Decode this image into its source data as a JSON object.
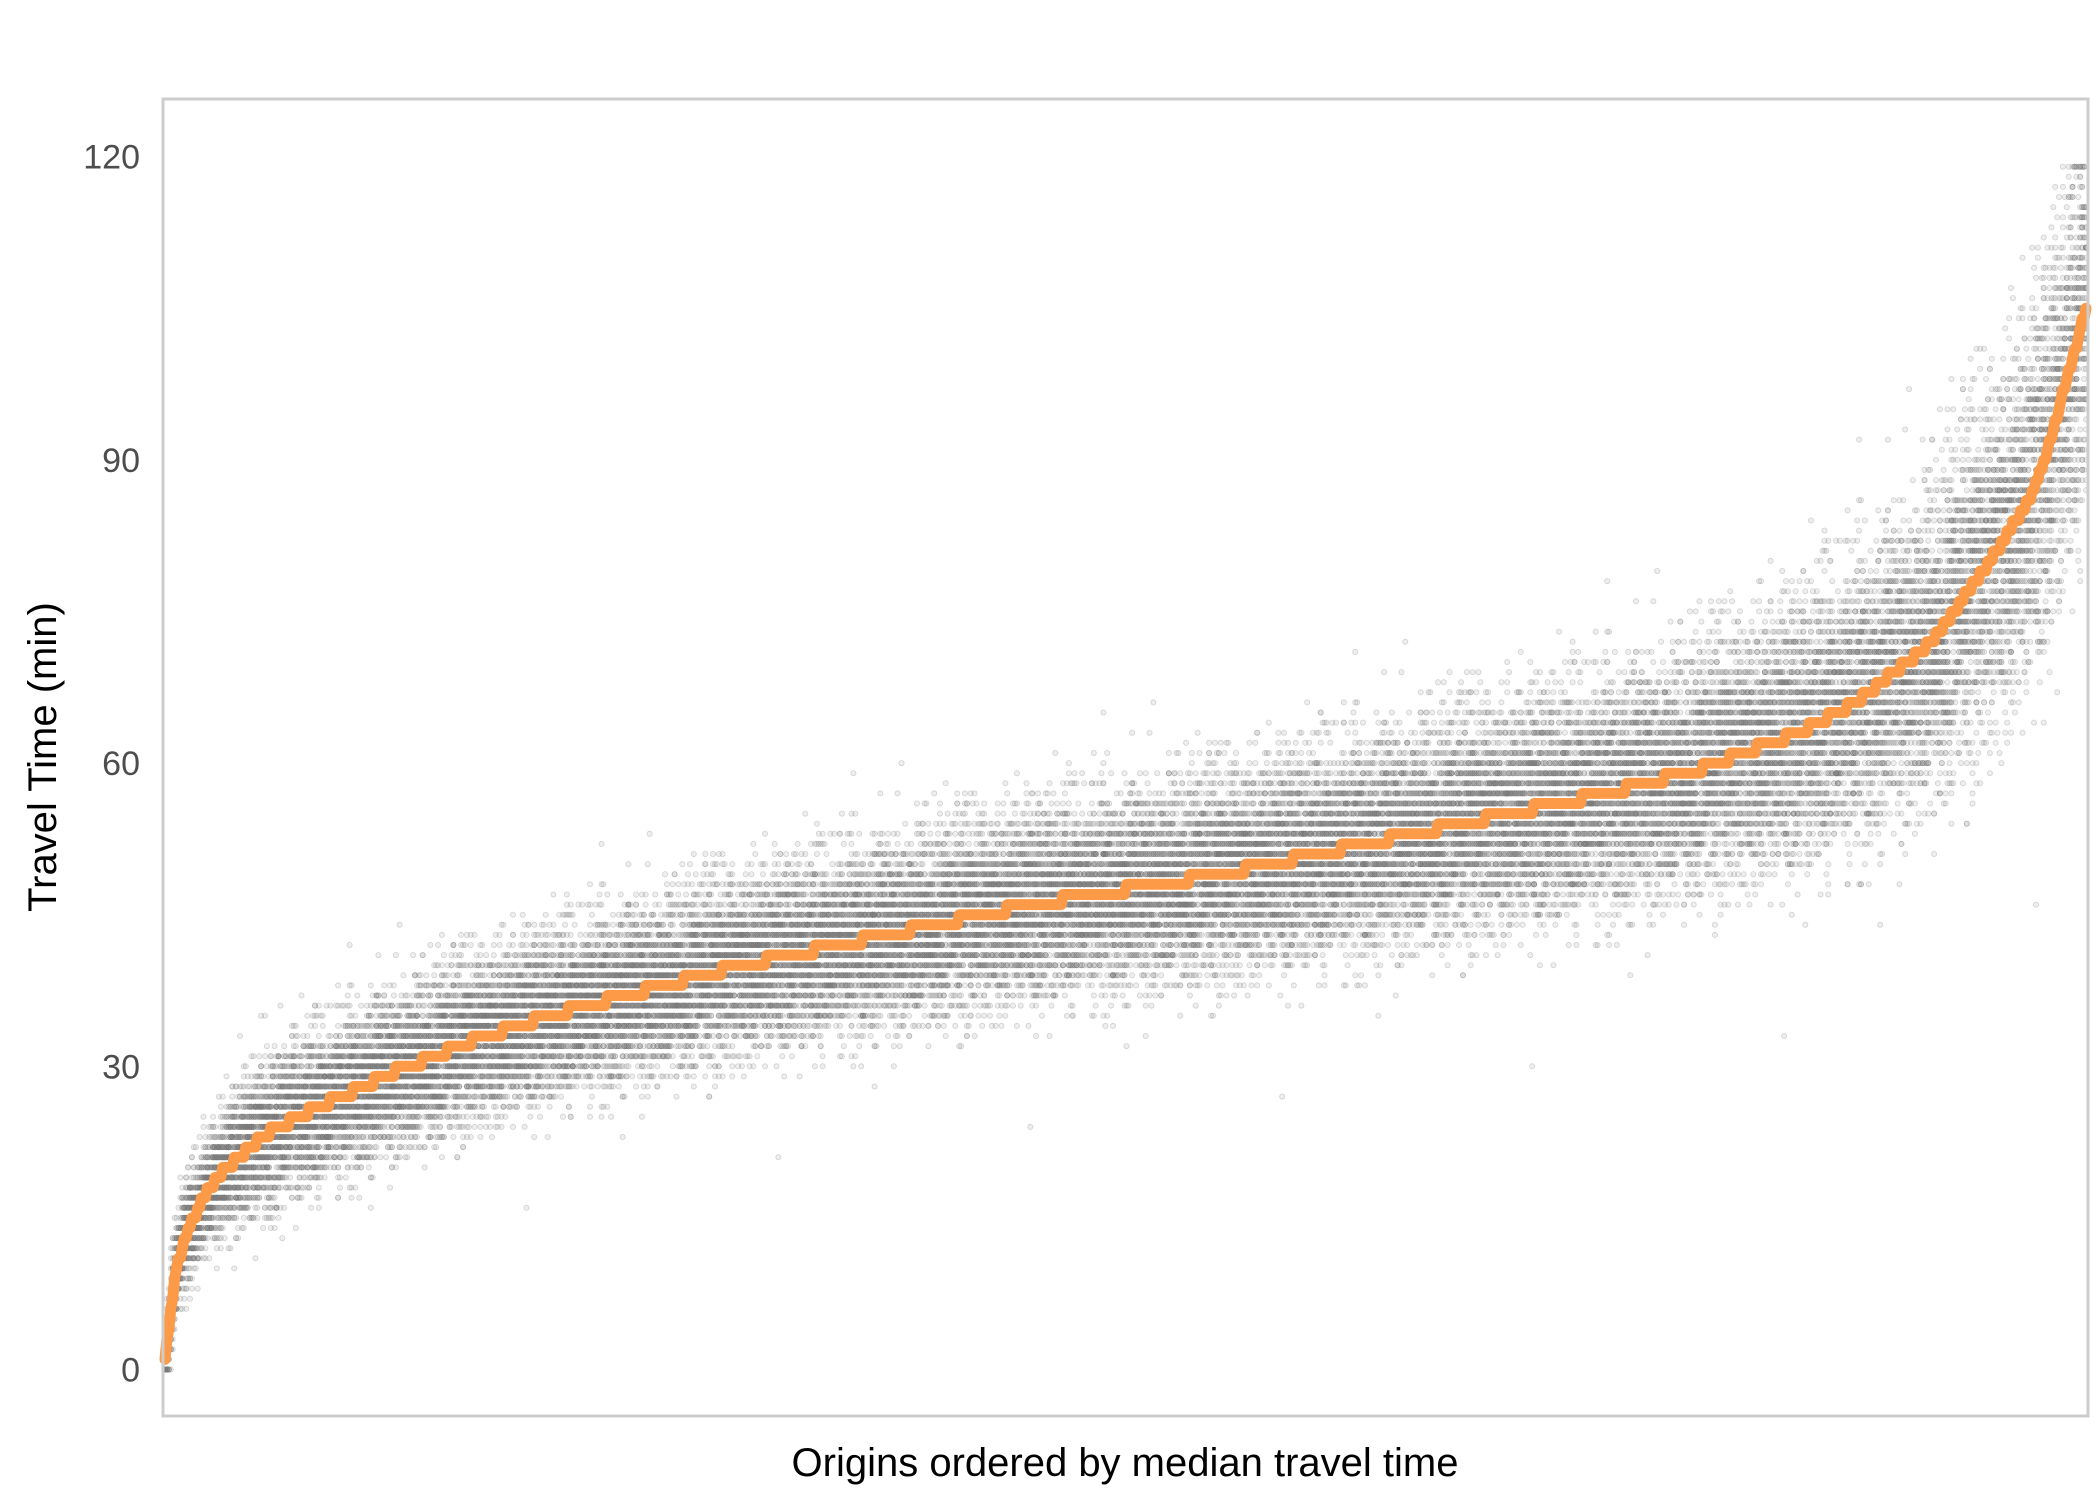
{
  "chart_data": {
    "type": "scatter",
    "xlabel": "Origins ordered by median travel time",
    "ylabel": "Travel Time (min)",
    "ylim": [
      -4.6,
      125.7
    ],
    "yticks": [
      0,
      30,
      60,
      90,
      120
    ],
    "x_ticks_shown": false,
    "grid": false,
    "legend": "none",
    "n_origins": 1000,
    "samples_per_origin": 40,
    "median_profile": {
      "x_rank_fraction": [
        0,
        0.005,
        0.01,
        0.02,
        0.03,
        0.05,
        0.08,
        0.12,
        0.16,
        0.2,
        0.25,
        0.3,
        0.35,
        0.4,
        0.45,
        0.5,
        0.55,
        0.6,
        0.65,
        0.7,
        0.75,
        0.8,
        0.85,
        0.88,
        0.9,
        0.92,
        0.935,
        0.95,
        0.96,
        0.97,
        0.98,
        0.99,
        1.0
      ],
      "median_minutes": [
        1,
        9,
        13,
        17,
        19.5,
        23,
        26,
        29.5,
        32.5,
        35,
        37.5,
        40,
        42,
        44,
        46,
        47.5,
        49,
        51,
        53,
        55,
        57,
        59.5,
        63,
        66,
        69,
        72,
        76,
        80,
        83,
        86,
        91,
        98,
        105
      ]
    },
    "spread_profile": {
      "x_rank_fraction": [
        0,
        0.05,
        0.5,
        0.8,
        0.9,
        1.0
      ],
      "sd_minutes": [
        2.2,
        3.6,
        4.6,
        5.6,
        7.0,
        9.5
      ]
    },
    "colors": {
      "median_line": "#fd9a48",
      "points": "#7a7a7a",
      "panel_border": "#cccccc",
      "background": "#ffffff"
    }
  }
}
